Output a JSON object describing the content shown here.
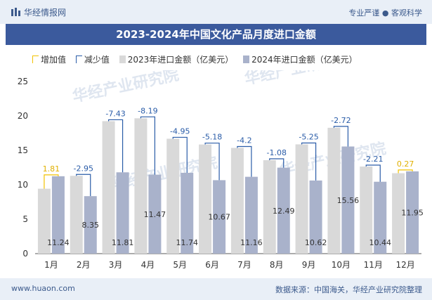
{
  "header": {
    "brand": "华经情报网",
    "slogan": "专业严谨 ● 客观科学"
  },
  "chart_title": "2023-2024年中国文化产品月度进口金额",
  "legend": {
    "increase": "增加值",
    "decrease": "减少值",
    "series_2023": "2023年进口金额（亿美元）",
    "series_2024": "2024年进口金额（亿美元）"
  },
  "colors": {
    "bar_2023": "#d9d9d9",
    "bar_2024": "#a9b2cb",
    "increase": "#f2c200",
    "decrease": "#2a5ca8",
    "label_increase": "#e0b000",
    "label_decrease": "#2a5ca8",
    "title_bg": "#3b5a9d"
  },
  "chart_data": {
    "type": "bar",
    "title": "2023-2024年中国文化产品月度进口金额",
    "categories": [
      "1月",
      "2月",
      "3月",
      "4月",
      "5月",
      "6月",
      "7月",
      "8月",
      "9月",
      "10月",
      "11月",
      "12月"
    ],
    "series": [
      {
        "name": "2023年进口金额（亿美元）",
        "values": [
          9.43,
          11.3,
          19.24,
          19.66,
          16.69,
          15.85,
          15.36,
          13.57,
          15.87,
          18.28,
          12.65,
          11.68
        ]
      },
      {
        "name": "2024年进口金额（亿美元）",
        "values": [
          11.24,
          8.35,
          11.81,
          11.47,
          11.74,
          10.67,
          11.16,
          12.49,
          10.62,
          15.56,
          10.44,
          11.95
        ]
      }
    ],
    "change": {
      "values": [
        1.81,
        -2.95,
        -7.43,
        -8.19,
        -4.95,
        -5.18,
        -4.2,
        -1.08,
        -5.25,
        -2.72,
        -2.21,
        0.27
      ],
      "labels": [
        "1.81",
        "-2.95",
        "-7.43",
        "-8.19",
        "-4.95",
        "-5.18",
        "-4.2",
        "-1.08",
        "-5.25",
        "-2.72",
        "-2.21",
        "0.27"
      ]
    },
    "value_labels_2024": [
      "11.24",
      "8.35",
      "11.81",
      "11.47",
      "11.74",
      "10.67",
      "11.16",
      "12.49",
      "10.62",
      "15.56",
      "10.44",
      "11.95"
    ],
    "yaxis": {
      "min": 0,
      "max": 25,
      "ticks": [
        0,
        5,
        10,
        15,
        20,
        25
      ]
    },
    "grid": false,
    "legend_position": "top-left"
  },
  "watermark": "华经产业研究院",
  "footer": {
    "site": "www.huaon.com",
    "source": "数据来源：中国海关，华经产业研究院整理"
  }
}
